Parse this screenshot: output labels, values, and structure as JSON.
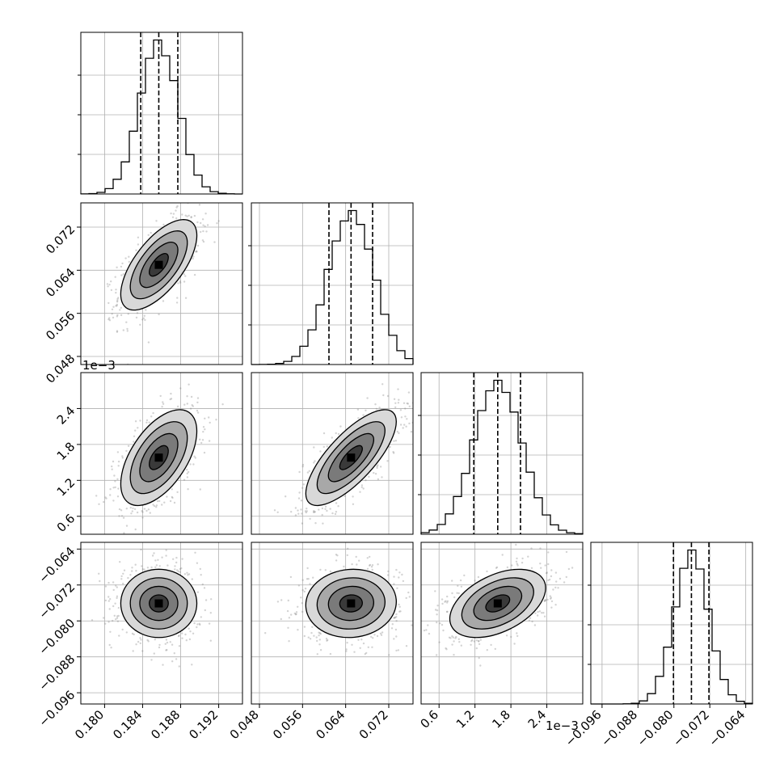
{
  "chart_data": {
    "type": "corner",
    "grid": true,
    "parameters": [
      {
        "index": 0,
        "range": [
          0.1775,
          0.1945
        ],
        "ticks": [
          "0.180",
          "0.184",
          "0.188",
          "0.192"
        ],
        "tick_values": [
          0.18,
          0.184,
          0.188,
          0.192
        ],
        "mean": 0.1857,
        "sd": 0.002,
        "quantiles": [
          0.1838,
          0.1857,
          0.1877
        ],
        "offset_label": ""
      },
      {
        "index": 1,
        "range": [
          0.0465,
          0.0765
        ],
        "ticks": [
          "0.048",
          "0.056",
          "0.064",
          "0.072"
        ],
        "tick_values": [
          0.048,
          0.056,
          0.064,
          0.072
        ],
        "mean": 0.065,
        "sd": 0.0042,
        "quantiles": [
          0.0609,
          0.065,
          0.069
        ],
        "offset_label": ""
      },
      {
        "index": 2,
        "range": [
          0.0003,
          0.003
        ],
        "ticks": [
          "0.6",
          "1.2",
          "1.8",
          "2.4"
        ],
        "tick_values": [
          0.0006,
          0.0012,
          0.0018,
          0.0024
        ],
        "mean": 0.00158,
        "sd": 0.0004,
        "quantiles": [
          0.00118,
          0.00158,
          0.00196
        ],
        "offset_label": "1e−3"
      },
      {
        "index": 3,
        "range": [
          -0.0985,
          -0.0625
        ],
        "ticks": [
          "−0.096",
          "−0.088",
          "−0.080",
          "−0.072",
          "−0.064"
        ],
        "tick_values": [
          -0.096,
          -0.088,
          -0.08,
          -0.072,
          -0.064
        ],
        "mean": -0.0761,
        "sd": 0.0038,
        "quantiles": [
          -0.0801,
          -0.0761,
          -0.0722
        ],
        "offset_label": ""
      }
    ],
    "correlations": [
      [
        1,
        0.65,
        0.55,
        0.0
      ],
      [
        0.65,
        1,
        0.75,
        0.05
      ],
      [
        0.55,
        0.75,
        1,
        0.45
      ],
      [
        0.0,
        0.05,
        0.45,
        1
      ]
    ],
    "histogram_bins": 20,
    "contour_levels": [
      "0.5",
      "1.0",
      "1.5",
      "2.0"
    ],
    "scatter_color": "#808080",
    "line_color": "#000000",
    "grid_color": "#b0b0b0"
  }
}
